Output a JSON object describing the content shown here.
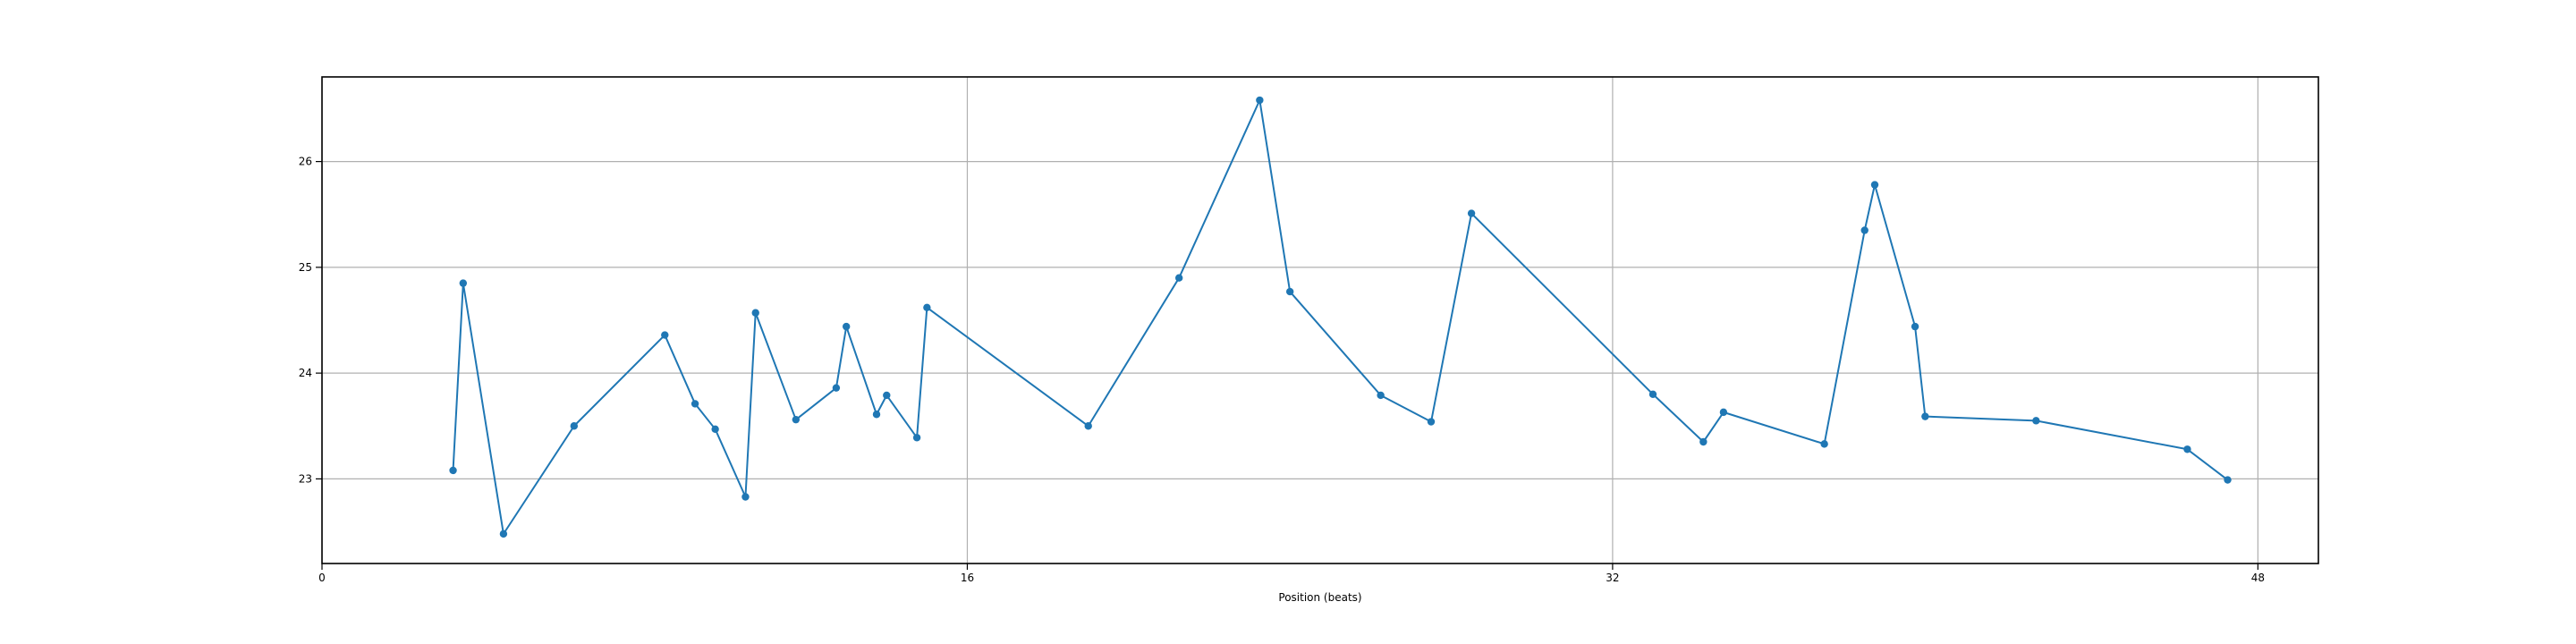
{
  "chart_data": {
    "type": "line",
    "title": "",
    "xlabel": "Position (beats)",
    "ylabel": "",
    "xlim": [
      0,
      49.5
    ],
    "ylim": [
      22.2,
      26.8
    ],
    "xticks": [
      0,
      16,
      32,
      48
    ],
    "yticks": [
      23,
      24,
      25,
      26
    ],
    "grid": true,
    "color": "#1f77b4",
    "series": [
      {
        "name": "",
        "x": [
          3.25,
          3.5,
          4.5,
          6.25,
          8.5,
          9.25,
          9.75,
          10.5,
          10.75,
          11.75,
          12.75,
          13.0,
          13.75,
          14.0,
          14.75,
          15.0,
          19.0,
          21.25,
          23.25,
          24.0,
          26.25,
          27.5,
          28.5,
          33.0,
          34.25,
          34.75,
          37.25,
          38.25,
          38.5,
          39.5,
          39.75,
          42.5,
          46.25,
          47.25
        ],
        "y": [
          23.08,
          24.85,
          22.48,
          23.5,
          24.36,
          23.71,
          23.47,
          22.83,
          24.57,
          23.56,
          23.86,
          24.44,
          23.61,
          23.79,
          23.39,
          24.62,
          23.5,
          24.9,
          26.58,
          24.77,
          23.79,
          23.54,
          25.51,
          23.8,
          23.35,
          23.63,
          23.33,
          25.35,
          25.78,
          24.44,
          23.59,
          23.55,
          23.28,
          22.99
        ]
      }
    ]
  }
}
